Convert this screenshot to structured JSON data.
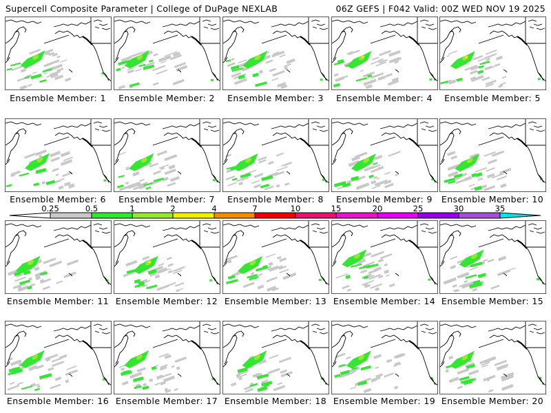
{
  "header": {
    "title_left": "Supercell Composite Parameter | College of DuPage NEXLAB",
    "title_right": "06Z GEFS | F042 Valid: 00Z WED NOV 19 2025"
  },
  "panels": [
    {
      "label": "Ensemble Member: 1",
      "member": 1
    },
    {
      "label": "Ensemble Member: 2",
      "member": 2
    },
    {
      "label": "Ensemble Member: 3",
      "member": 3
    },
    {
      "label": "Ensemble Member: 4",
      "member": 4
    },
    {
      "label": "Ensemble Member: 5",
      "member": 5
    },
    {
      "label": "Ensemble Member: 6",
      "member": 6
    },
    {
      "label": "Ensemble Member: 7",
      "member": 7
    },
    {
      "label": "Ensemble Member: 8",
      "member": 8
    },
    {
      "label": "Ensemble Member: 9",
      "member": 9
    },
    {
      "label": "Ensemble Member: 10",
      "member": 10
    },
    {
      "label": "Ensemble Member: 11",
      "member": 11
    },
    {
      "label": "Ensemble Member: 12",
      "member": 12
    },
    {
      "label": "Ensemble Member: 13",
      "member": 13
    },
    {
      "label": "Ensemble Member: 14",
      "member": 14
    },
    {
      "label": "Ensemble Member: 15",
      "member": 15
    },
    {
      "label": "Ensemble Member: 16",
      "member": 16
    },
    {
      "label": "Ensemble Member: 17",
      "member": 17
    },
    {
      "label": "Ensemble Member: 18",
      "member": 18
    },
    {
      "label": "Ensemble Member: 19",
      "member": 19
    },
    {
      "label": "Ensemble Member: 20",
      "member": 20
    }
  ],
  "colorbar": {
    "ticks": [
      "0.25",
      "0.5",
      "1",
      "2",
      "4",
      "7",
      "10",
      "15",
      "20",
      "25",
      "30",
      "35"
    ],
    "colors": [
      "#c8c8c8",
      "#32e632",
      "#96e632",
      "#f0f000",
      "#f08c00",
      "#f00000",
      "#e6146e",
      "#e614c8",
      "#e600f0",
      "#9600e6",
      "#a050d2"
    ],
    "under_color": "#ffffff",
    "over_color": "#00e6e6"
  },
  "legend_colors": {
    "coastline": "#000000",
    "low_values": "#c8c8c8",
    "green": "#32e632",
    "lime": "#96e632",
    "yellow": "#f0f000"
  }
}
